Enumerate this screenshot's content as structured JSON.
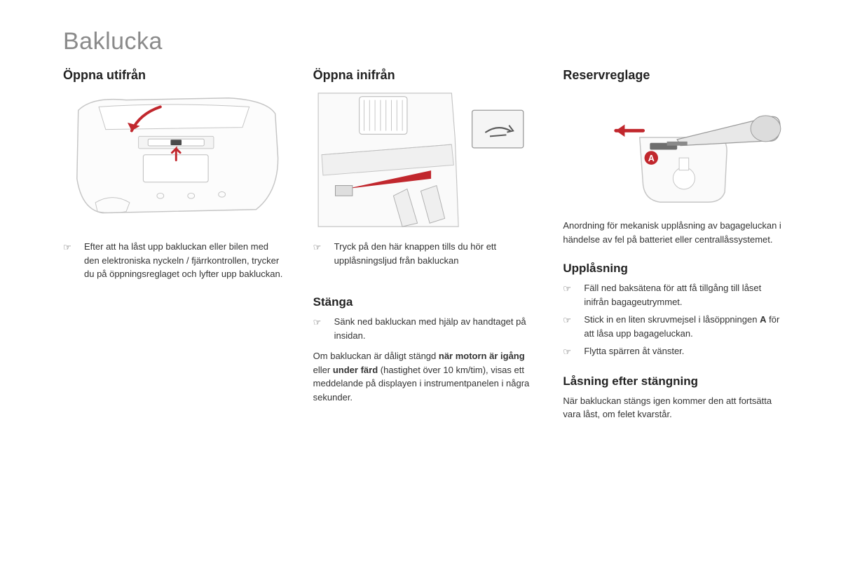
{
  "title": "Baklucka",
  "colors": {
    "title_gray": "#8a8a8a",
    "text": "#333333",
    "heading": "#222222",
    "accent_red": "#c1272d",
    "stroke_gray": "#c5c5c5",
    "stroke_dark": "#6e6e6e",
    "bg": "#ffffff"
  },
  "col1": {
    "heading": "Öppna utifrån",
    "bullets": [
      "Efter att ha låst upp bakluckan eller bilen med den elektroniska nyckeln / fjärrkontrollen, trycker du på öppningsreglaget och lyfter upp bakluckan."
    ]
  },
  "col2": {
    "heading": "Öppna inifrån",
    "bullets": [
      "Tryck på den här knappen tills du hör ett upplåsningsljud från bakluckan"
    ],
    "sub_heading": "Stänga",
    "sub_bullets": [
      "Sänk ned bakluckan med hjälp av handtaget på insidan."
    ],
    "para_html": "Om bakluckan är dåligt stängd <b>när motorn är igång</b> eller <b>under färd</b> (hastighet över 10 km/tim), visas ett meddelande på displayen i instrumentpanelen i några sekunder."
  },
  "col3": {
    "heading": "Reservreglage",
    "intro": "Anordning för mekanisk upplåsning av bagageluckan i händelse av fel på batteriet eller centrallåssystemet.",
    "sub1_heading": "Upplåsning",
    "sub1_bullets": [
      "Fäll ned baksätena för att få tillgång till låset inifrån bagageutrymmet.",
      "Stick in en liten skruvmejsel i låsöppningen <b class=\"label-a-ref\">A</b> för att låsa upp bagageluckan.",
      "Flytta spärren åt vänster."
    ],
    "sub2_heading": "Låsning efter stängning",
    "sub2_para": "När bakluckan stängs igen kommer den att fortsätta vara låst, om felet kvarstår."
  },
  "hand_glyph": "☞",
  "label_a": "A"
}
